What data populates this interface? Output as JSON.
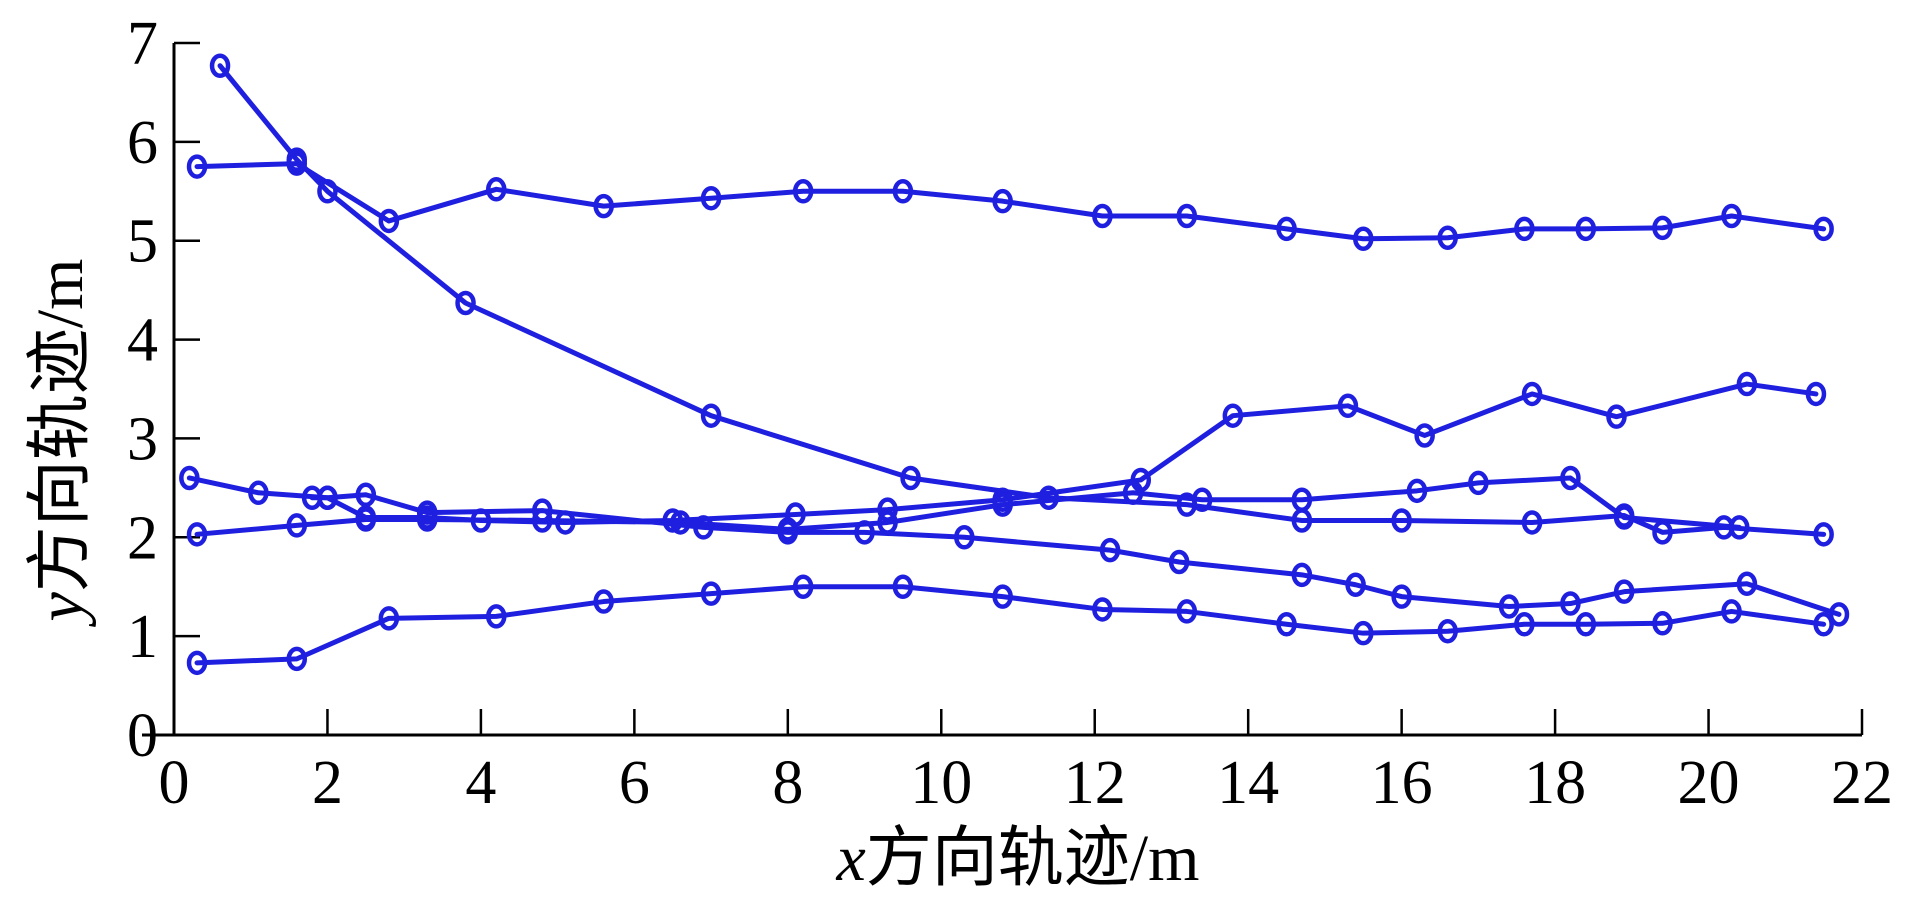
{
  "chart_data": {
    "type": "line",
    "title": "",
    "xlabel_var": "x",
    "xlabel_text": "方向轨迹/m",
    "ylabel_var": "y",
    "ylabel_text": "方向轨迹/m",
    "xlim": [
      0,
      22
    ],
    "ylim": [
      0,
      7
    ],
    "xticks": [
      "0",
      "2",
      "4",
      "6",
      "8",
      "10",
      "12",
      "14",
      "16",
      "18",
      "20",
      "22"
    ],
    "yticks": [
      "0",
      "1",
      "2",
      "3",
      "4",
      "5",
      "6",
      "7"
    ],
    "grid": false,
    "legend": false,
    "color": "#1f1fe0",
    "marker": "circle",
    "series": [
      {
        "x": [
          0.3,
          1.6,
          2.8,
          4.2,
          5.6,
          7.0,
          8.2,
          9.5,
          10.8,
          12.1,
          13.2,
          14.5,
          15.5,
          16.6,
          17.6,
          18.4,
          19.4,
          20.3,
          21.5
        ],
        "y": [
          5.75,
          5.78,
          5.2,
          5.52,
          5.35,
          5.43,
          5.5,
          5.5,
          5.4,
          5.25,
          5.25,
          5.12,
          5.02,
          5.03,
          5.12,
          5.12,
          5.13,
          5.25,
          5.12
        ]
      },
      {
        "x": [
          0.3,
          1.6,
          2.8,
          4.2,
          5.6,
          7.0,
          8.2,
          9.5,
          10.8,
          12.1,
          13.2,
          14.5,
          15.5,
          16.6,
          17.6,
          18.4,
          19.4,
          20.3,
          21.5
        ],
        "y": [
          0.73,
          0.77,
          1.18,
          1.2,
          1.35,
          1.43,
          1.5,
          1.5,
          1.4,
          1.27,
          1.25,
          1.12,
          1.03,
          1.05,
          1.12,
          1.12,
          1.13,
          1.25,
          1.12
        ]
      },
      {
        "x": [
          0.6,
          1.6,
          2.0,
          3.8,
          7.0,
          9.6,
          11.4,
          13.2,
          14.7,
          16.0,
          17.7,
          18.9,
          19.4,
          20.2,
          21.5
        ],
        "y": [
          6.77,
          5.82,
          5.5,
          4.37,
          3.23,
          2.6,
          2.4,
          2.33,
          2.17,
          2.17,
          2.15,
          2.22,
          2.05,
          2.1,
          2.03
        ]
      },
      {
        "x": [
          0.2,
          1.1,
          2.0,
          2.5,
          3.3,
          4.0,
          5.1,
          6.5,
          8.1,
          9.3,
          10.8,
          12.6,
          13.8,
          15.3,
          16.3,
          17.7,
          18.8,
          20.5,
          21.4
        ],
        "y": [
          2.6,
          2.45,
          2.4,
          2.2,
          2.2,
          2.17,
          2.15,
          2.17,
          2.23,
          2.28,
          2.38,
          2.58,
          3.23,
          3.33,
          3.03,
          3.45,
          3.22,
          3.55,
          3.45
        ]
      },
      {
        "x": [
          0.3,
          1.6,
          2.5,
          3.3,
          4.8,
          6.6,
          8.0,
          9.3,
          10.8,
          12.5,
          13.4,
          14.7,
          16.2,
          17.0,
          18.2,
          18.9,
          20.4
        ],
        "y": [
          2.03,
          2.12,
          2.18,
          2.18,
          2.17,
          2.15,
          2.08,
          2.15,
          2.33,
          2.45,
          2.38,
          2.38,
          2.47,
          2.55,
          2.6,
          2.2,
          2.1
        ]
      },
      {
        "x": [
          1.8,
          2.0,
          2.5,
          3.3,
          4.8,
          6.9,
          8.0,
          9.0,
          10.3,
          12.2,
          13.1,
          14.7,
          15.4,
          16.0,
          17.4,
          18.2,
          18.9,
          20.5,
          21.7
        ],
        "y": [
          2.4,
          2.4,
          2.43,
          2.25,
          2.27,
          2.1,
          2.05,
          2.05,
          2.0,
          1.87,
          1.75,
          1.62,
          1.52,
          1.4,
          1.3,
          1.33,
          1.45,
          1.53,
          1.22
        ]
      }
    ]
  }
}
